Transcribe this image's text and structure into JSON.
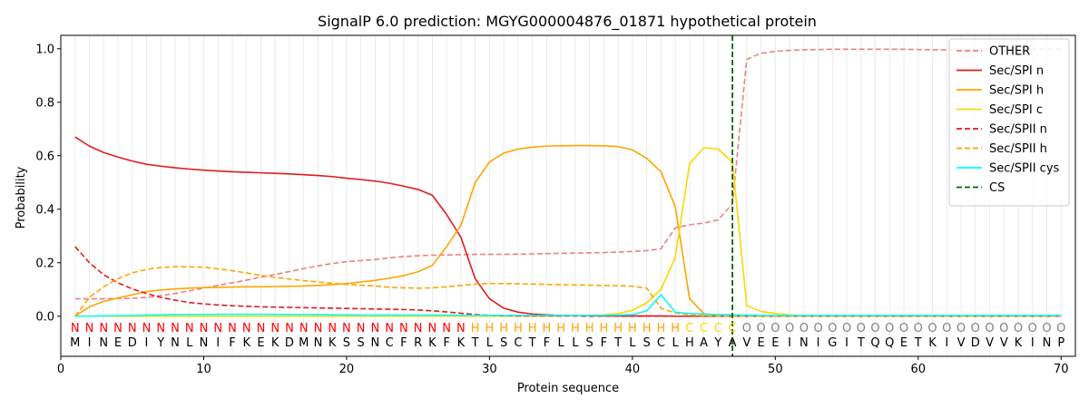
{
  "chart_data": {
    "type": "line",
    "title": "SignalP 6.0 prediction: MGYG000004876_01871 hypothetical protein",
    "xlabel": "Protein sequence",
    "ylabel": "Probability",
    "xlim": [
      0,
      71
    ],
    "ylim": [
      -0.15,
      1.05
    ],
    "x_ticks": [
      0,
      10,
      20,
      30,
      40,
      50,
      60,
      70
    ],
    "y_ticks": [
      0.0,
      0.2,
      0.4,
      0.6,
      0.8,
      1.0
    ],
    "x_tick_labels": [
      "0",
      "10",
      "20",
      "30",
      "40",
      "50",
      "60",
      "70"
    ],
    "y_tick_labels": [
      "0.0",
      "0.2",
      "0.4",
      "0.6",
      "0.8",
      "1.0"
    ],
    "grid": "vertical lines at each residue",
    "legend_position": "top-right",
    "sequence": [
      "M",
      "I",
      "N",
      "E",
      "D",
      "I",
      "Y",
      "N",
      "L",
      "N",
      "I",
      "F",
      "K",
      "E",
      "K",
      "D",
      "M",
      "N",
      "K",
      "S",
      "S",
      "N",
      "C",
      "F",
      "R",
      "K",
      "F",
      "K",
      "T",
      "L",
      "S",
      "C",
      "T",
      "F",
      "L",
      "L",
      "S",
      "F",
      "T",
      "L",
      "S",
      "C",
      "L",
      "H",
      "A",
      "Y",
      "A",
      "V",
      "E",
      "E",
      "I",
      "N",
      "I",
      "G",
      "I",
      "T",
      "Q",
      "Q",
      "E",
      "T",
      "K",
      "I",
      "V",
      "D",
      "V",
      "V",
      "K",
      "I",
      "N",
      "P"
    ],
    "region_labels": [
      "N",
      "N",
      "N",
      "N",
      "N",
      "N",
      "N",
      "N",
      "N",
      "N",
      "N",
      "N",
      "N",
      "N",
      "N",
      "N",
      "N",
      "N",
      "N",
      "N",
      "N",
      "N",
      "N",
      "N",
      "N",
      "N",
      "N",
      "N",
      "H",
      "H",
      "H",
      "H",
      "H",
      "H",
      "H",
      "H",
      "H",
      "H",
      "H",
      "H",
      "H",
      "H",
      "H",
      "C",
      "C",
      "C",
      "C",
      "O",
      "O",
      "O",
      "O",
      "O",
      "O",
      "O",
      "O",
      "O",
      "O",
      "O",
      "O",
      "O",
      "O",
      "O",
      "O",
      "O",
      "O",
      "O",
      "O",
      "O",
      "O",
      "O"
    ],
    "region_colors": {
      "N": "#ff0000",
      "H": "#ffa500",
      "C": "#ffd700",
      "O": "#808080"
    },
    "cs_position": 47,
    "series": [
      {
        "name": "OTHER",
        "color": "#f08080",
        "dash": true,
        "values": [
          0.065,
          0.065,
          0.065,
          0.066,
          0.067,
          0.07,
          0.077,
          0.085,
          0.095,
          0.105,
          0.115,
          0.125,
          0.135,
          0.146,
          0.156,
          0.167,
          0.178,
          0.188,
          0.197,
          0.204,
          0.208,
          0.212,
          0.218,
          0.223,
          0.226,
          0.228,
          0.229,
          0.23,
          0.231,
          0.231,
          0.231,
          0.232,
          0.233,
          0.234,
          0.235,
          0.236,
          0.237,
          0.238,
          0.24,
          0.242,
          0.245,
          0.252,
          0.33,
          0.342,
          0.348,
          0.36,
          0.42,
          0.96,
          0.983,
          0.99,
          0.994,
          0.996,
          0.997,
          0.998,
          0.998,
          0.998,
          0.998,
          0.998,
          0.998,
          0.997,
          0.996,
          0.996,
          0.996,
          0.996,
          0.997,
          0.997,
          0.997,
          0.998,
          0.998,
          0.998
        ]
      },
      {
        "name": "Sec/SPI n",
        "color": "#e31a1c",
        "dash": false,
        "values": [
          0.67,
          0.636,
          0.612,
          0.595,
          0.58,
          0.568,
          0.561,
          0.555,
          0.55,
          0.546,
          0.543,
          0.54,
          0.538,
          0.536,
          0.534,
          0.532,
          0.529,
          0.526,
          0.522,
          0.516,
          0.511,
          0.505,
          0.497,
          0.486,
          0.474,
          0.452,
          0.38,
          0.295,
          0.14,
          0.065,
          0.03,
          0.015,
          0.008,
          0.005,
          0.003,
          0.002,
          0.002,
          0.001,
          0.001,
          0.001,
          0.001,
          0.001,
          0,
          0,
          0,
          0,
          0,
          0,
          0,
          0,
          0,
          0,
          0,
          0,
          0,
          0,
          0,
          0,
          0,
          0,
          0,
          0,
          0,
          0,
          0,
          0,
          0,
          0,
          0,
          0
        ]
      },
      {
        "name": "Sec/SPI h",
        "color": "#ffa500",
        "dash": false,
        "values": [
          0.0,
          0.035,
          0.055,
          0.068,
          0.08,
          0.092,
          0.098,
          0.102,
          0.105,
          0.107,
          0.108,
          0.109,
          0.11,
          0.11,
          0.111,
          0.112,
          0.113,
          0.115,
          0.118,
          0.122,
          0.128,
          0.134,
          0.142,
          0.152,
          0.166,
          0.19,
          0.26,
          0.34,
          0.5,
          0.577,
          0.61,
          0.625,
          0.632,
          0.636,
          0.637,
          0.638,
          0.638,
          0.637,
          0.634,
          0.622,
          0.59,
          0.54,
          0.41,
          0.065,
          0.01,
          0,
          0,
          0,
          0,
          0,
          0,
          0,
          0,
          0,
          0,
          0,
          0,
          0,
          0,
          0,
          0,
          0,
          0,
          0,
          0,
          0,
          0,
          0,
          0,
          0
        ]
      },
      {
        "name": "Sec/SPI c",
        "color": "#ffd700",
        "dash": false,
        "values": [
          0,
          0,
          0,
          0,
          0,
          0,
          0,
          0,
          0,
          0,
          0,
          0,
          0,
          0,
          0,
          0,
          0,
          0,
          0,
          0,
          0,
          0,
          0,
          0,
          0,
          0,
          0,
          0,
          0,
          0,
          0,
          0,
          0,
          0,
          0.001,
          0.002,
          0.003,
          0.005,
          0.01,
          0.022,
          0.05,
          0.1,
          0.22,
          0.57,
          0.63,
          0.625,
          0.575,
          0.04,
          0.018,
          0.01,
          0.005,
          0.003,
          0.002,
          0.001,
          0.001,
          0,
          0,
          0,
          0,
          0,
          0,
          0,
          0,
          0,
          0,
          0,
          0,
          0,
          0,
          0
        ]
      },
      {
        "name": "Sec/SPII n",
        "color": "#e31a1c",
        "dash": true,
        "values": [
          0.26,
          0.2,
          0.155,
          0.125,
          0.102,
          0.085,
          0.07,
          0.06,
          0.051,
          0.046,
          0.042,
          0.039,
          0.037,
          0.035,
          0.034,
          0.033,
          0.032,
          0.031,
          0.03,
          0.029,
          0.028,
          0.027,
          0.026,
          0.025,
          0.023,
          0.02,
          0.016,
          0.011,
          0.006,
          0.003,
          0.002,
          0.001,
          0.001,
          0.001,
          0.001,
          0.001,
          0,
          0,
          0,
          0,
          0,
          0,
          0,
          0,
          0,
          0,
          0,
          0,
          0,
          0,
          0,
          0,
          0,
          0,
          0,
          0,
          0,
          0,
          0,
          0,
          0,
          0,
          0,
          0,
          0,
          0,
          0,
          0,
          0,
          0
        ]
      },
      {
        "name": "Sec/SPII h",
        "color": "#ffa500",
        "dash": true,
        "values": [
          0.0,
          0.07,
          0.11,
          0.14,
          0.162,
          0.175,
          0.182,
          0.185,
          0.185,
          0.183,
          0.177,
          0.17,
          0.162,
          0.152,
          0.145,
          0.139,
          0.133,
          0.128,
          0.123,
          0.119,
          0.116,
          0.113,
          0.108,
          0.106,
          0.105,
          0.106,
          0.11,
          0.115,
          0.12,
          0.122,
          0.122,
          0.121,
          0.12,
          0.119,
          0.118,
          0.117,
          0.116,
          0.115,
          0.114,
          0.112,
          0.105,
          0.03,
          0.012,
          0.005,
          0.002,
          0.001,
          0,
          0,
          0,
          0,
          0,
          0,
          0,
          0,
          0,
          0,
          0,
          0,
          0,
          0,
          0,
          0,
          0,
          0,
          0,
          0,
          0,
          0,
          0,
          0
        ]
      },
      {
        "name": "Sec/SPII cys",
        "color": "#00ffff",
        "dash": false,
        "values": [
          0.0,
          0.0,
          0.001,
          0.002,
          0.003,
          0.004,
          0.005,
          0.006,
          0.006,
          0.006,
          0.007,
          0.007,
          0.007,
          0.007,
          0.007,
          0.006,
          0.006,
          0.006,
          0.005,
          0.005,
          0.004,
          0.004,
          0.004,
          0.004,
          0.004,
          0.004,
          0.004,
          0.003,
          0.003,
          0.003,
          0.003,
          0.003,
          0.003,
          0.003,
          0.003,
          0.003,
          0.003,
          0.003,
          0.004,
          0.006,
          0.02,
          0.08,
          0.015,
          0.01,
          0.008,
          0.006,
          0.005,
          0.004,
          0.003,
          0.003,
          0.003,
          0.003,
          0.003,
          0.003,
          0.003,
          0.003,
          0.003,
          0.003,
          0.003,
          0.003,
          0.003,
          0.003,
          0.003,
          0.003,
          0.003,
          0.003,
          0.003,
          0.003,
          0.003,
          0.003
        ]
      },
      {
        "name": "CS",
        "color": "#006400",
        "dash": true,
        "values": []
      }
    ]
  }
}
